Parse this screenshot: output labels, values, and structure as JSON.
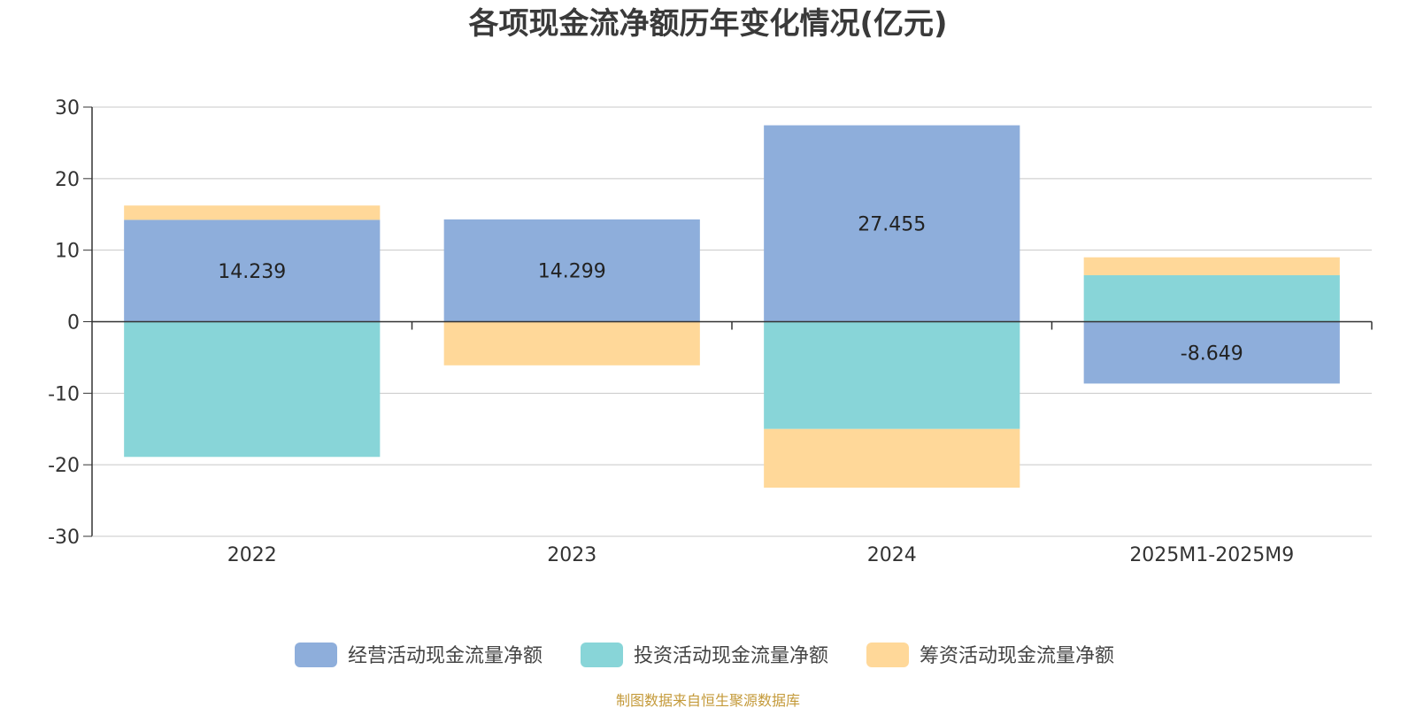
{
  "chart_data": {
    "type": "bar",
    "stacked": true,
    "title": "各项现金流净额历年变化情况(亿元)",
    "categories": [
      "2022",
      "2023",
      "2024",
      "2025M1-2025M9"
    ],
    "ylim": [
      -30,
      30
    ],
    "yticks": [
      30,
      20,
      10,
      0,
      -10,
      -20,
      -30
    ],
    "grid": true,
    "legend_position": "bottom",
    "series": [
      {
        "name": "经营活动现金流量净额",
        "color": "#8eaedb",
        "values": [
          14.239,
          14.299,
          27.455,
          -8.649
        ],
        "labels": [
          "14.239",
          "14.299",
          "27.455",
          "-8.649"
        ]
      },
      {
        "name": "投资活动现金流量净额",
        "color": "#88d5d8",
        "values": [
          -18.9,
          0,
          -15.0,
          6.5
        ]
      },
      {
        "name": "筹资活动现金流量净额",
        "color": "#ffd899",
        "values": [
          2.0,
          -6.1,
          -8.2,
          2.5
        ]
      }
    ]
  },
  "source": "制图数据来自恒生聚源数据库"
}
